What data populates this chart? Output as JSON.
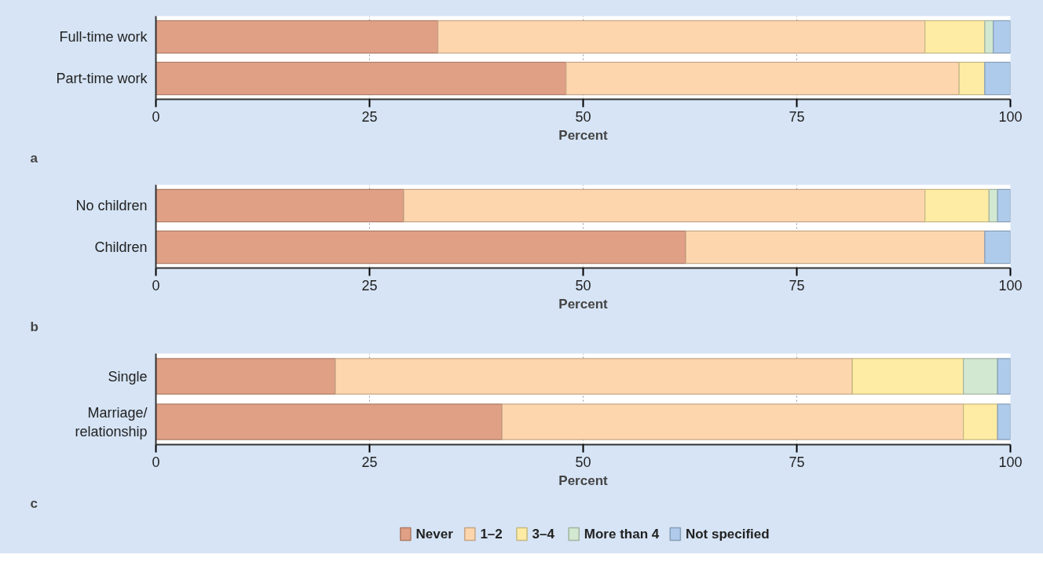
{
  "chart_data": [
    {
      "type": "bar",
      "orientation": "horizontal",
      "stacked": true,
      "categories": [
        "Full-time work",
        "Part-time work"
      ],
      "xlabel": "Percent",
      "annotations": [
        "a"
      ],
      "xlim": [
        0,
        100
      ],
      "xticks": [
        0,
        25,
        50,
        75,
        100
      ],
      "grid": "x",
      "series": [
        {
          "color": "#e0a085",
          "values": [
            33,
            48
          ]
        },
        {
          "color": "#fdd6ae",
          "values": [
            57,
            46
          ]
        },
        {
          "color": "#feeca5",
          "values": [
            7,
            3
          ]
        },
        {
          "color": "#d2e8d0",
          "values": [
            1,
            0
          ]
        },
        {
          "color": "#aecbeb",
          "values": [
            2,
            3
          ]
        }
      ]
    },
    {
      "type": "bar",
      "orientation": "horizontal",
      "stacked": true,
      "categories": [
        "No children",
        "Children"
      ],
      "xlabel": "Percent",
      "annotations": [
        "b"
      ],
      "xlim": [
        0,
        100
      ],
      "xticks": [
        0,
        25,
        50,
        75,
        100
      ],
      "grid": "x",
      "series": [
        {
          "color": "#e0a085",
          "values": [
            29,
            62
          ]
        },
        {
          "color": "#fdd6ae",
          "values": [
            61,
            35
          ]
        },
        {
          "color": "#feeca5",
          "values": [
            7.5,
            0
          ]
        },
        {
          "color": "#d2e8d0",
          "values": [
            1,
            0
          ]
        },
        {
          "color": "#aecbeb",
          "values": [
            1.5,
            3
          ]
        }
      ]
    },
    {
      "type": "bar",
      "orientation": "horizontal",
      "stacked": true,
      "categories": [
        "Single",
        "Marriage/\nrelationship"
      ],
      "xlabel": "Percent",
      "annotations": [
        "c"
      ],
      "xlim": [
        0,
        100
      ],
      "xticks": [
        0,
        25,
        50,
        75,
        100
      ],
      "grid": "x",
      "legend": "bottom",
      "series": [
        {
          "name": "Never",
          "color": "#e0a085",
          "values": [
            21,
            40.5
          ]
        },
        {
          "name": "1–2",
          "color": "#fdd6ae",
          "values": [
            60.5,
            54
          ]
        },
        {
          "name": "3–4",
          "color": "#feeca5",
          "values": [
            13,
            4
          ]
        },
        {
          "name": "More than 4",
          "color": "#d2e8d0",
          "values": [
            4,
            0
          ]
        },
        {
          "name": "Not specified",
          "color": "#aecbeb",
          "values": [
            1.5,
            1.5
          ]
        }
      ]
    }
  ]
}
